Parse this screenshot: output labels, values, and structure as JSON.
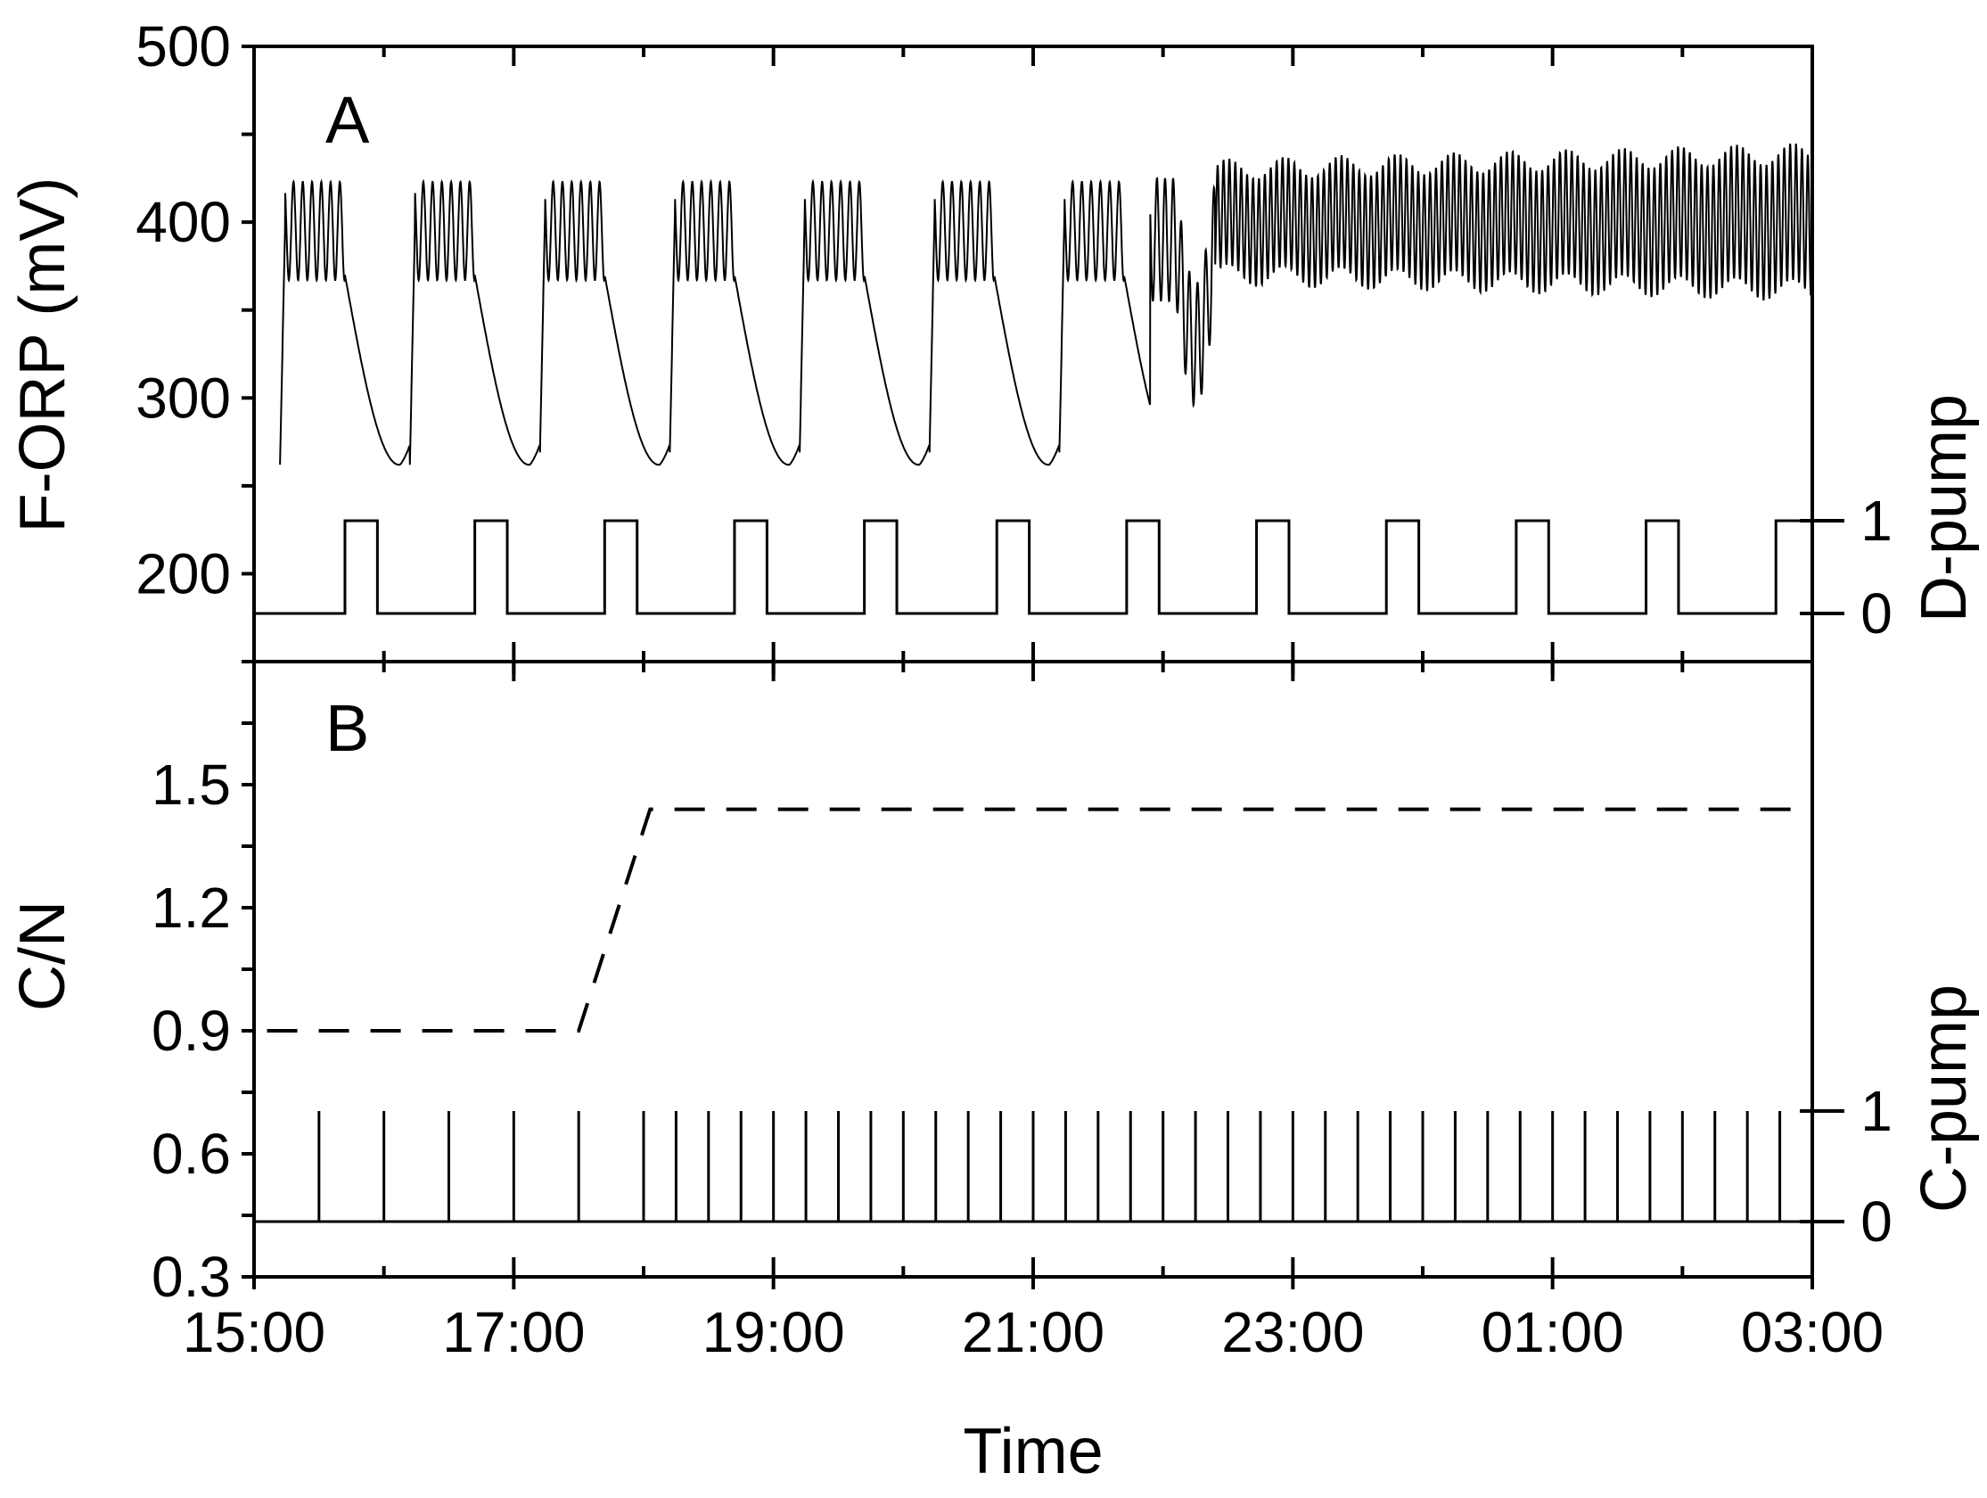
{
  "figure": {
    "xlabel": "Time",
    "x_ticks": [
      "15:00",
      "17:00",
      "19:00",
      "21:00",
      "23:00",
      "01:00",
      "03:00"
    ],
    "x_range_hours": [
      15,
      27
    ],
    "colors": {
      "line": "#000000",
      "background": "#ffffff"
    }
  },
  "chart_data": [
    {
      "type": "line",
      "panel_label": "A",
      "xlabel": "Time",
      "ylabel": "F-ORP (mV)",
      "ylim": [
        150,
        500
      ],
      "y_ticks": [
        200,
        300,
        400,
        500
      ],
      "grid": false,
      "left_axis_series": {
        "style": "solid",
        "x_unit": "hours since 15:00",
        "x": [
          0.2,
          0.25,
          0.3,
          0.35,
          0.5,
          0.7,
          0.9,
          1.1,
          1.5,
          1.9,
          2.1,
          2.4,
          2.7,
          2.9,
          3.1,
          3.5,
          3.9,
          4.1,
          4.4,
          4.7,
          4.9,
          5.1,
          5.5,
          5.9,
          6.1,
          6.4,
          6.7,
          6.9,
          7.1,
          7.5,
          7.9,
          8.1,
          8.5,
          8.9,
          9.2,
          9.5,
          9.9,
          10.2,
          10.6,
          11,
          11.5,
          12
        ],
        "y": [
          260,
          405,
          408,
          370,
          420,
          372,
          300,
          262,
          265,
          418,
          370,
          310,
          260,
          262,
          420,
          370,
          300,
          258,
          265,
          420,
          372,
          310,
          258,
          262,
          420,
          372,
          305,
          255,
          265,
          425,
          380,
          268,
          420,
          370,
          335,
          420,
          390,
          400,
          395,
          400,
          395,
          400
        ],
        "description_values": {
          "oscillation_peak_early": 425,
          "oscillation_trough_early": 365,
          "cycle_minimum": 255,
          "late_band_upper": 450,
          "late_band_lower": 360
        }
      },
      "right_axis": {
        "label": "D-pump",
        "ticks": [
          0,
          1
        ],
        "series": {
          "style": "step",
          "on_intervals_hours": [
            [
              0.7,
              0.95
            ],
            [
              1.7,
              1.95
            ],
            [
              2.7,
              2.95
            ],
            [
              3.7,
              3.95
            ],
            [
              4.7,
              4.95
            ],
            [
              5.72,
              5.97
            ],
            [
              6.72,
              6.97
            ],
            [
              7.72,
              7.97
            ],
            [
              8.72,
              8.97
            ],
            [
              9.72,
              9.97
            ],
            [
              10.72,
              10.97
            ],
            [
              11.72,
              12
            ]
          ]
        }
      }
    },
    {
      "type": "line",
      "panel_label": "B",
      "xlabel": "Time",
      "ylabel": "C/N",
      "ylim": [
        0.3,
        1.8
      ],
      "y_ticks": [
        0.3,
        0.6,
        0.9,
        1.2,
        1.5
      ],
      "grid": false,
      "left_axis_series": {
        "style": "dashed",
        "x_unit": "hours since 15:00",
        "x": [
          0.1,
          2.5,
          3.05,
          12
        ],
        "y": [
          0.9,
          0.9,
          1.44,
          1.44
        ]
      },
      "right_axis": {
        "label": "C-pump",
        "ticks": [
          0,
          1
        ],
        "series": {
          "style": "pulses",
          "pulse_times_hours": [
            0.5,
            1.0,
            1.5,
            2.0,
            2.5,
            3.0,
            3.25,
            3.5,
            3.75,
            4.0,
            4.25,
            4.5,
            4.75,
            5.0,
            5.25,
            5.5,
            5.75,
            6.0,
            6.25,
            6.5,
            6.75,
            7.0,
            7.25,
            7.5,
            7.75,
            8.0,
            8.25,
            8.5,
            8.75,
            9.0,
            9.25,
            9.5,
            9.75,
            10.0,
            10.25,
            10.5,
            10.75,
            11.0,
            11.25,
            11.5,
            11.75
          ]
        }
      }
    }
  ]
}
